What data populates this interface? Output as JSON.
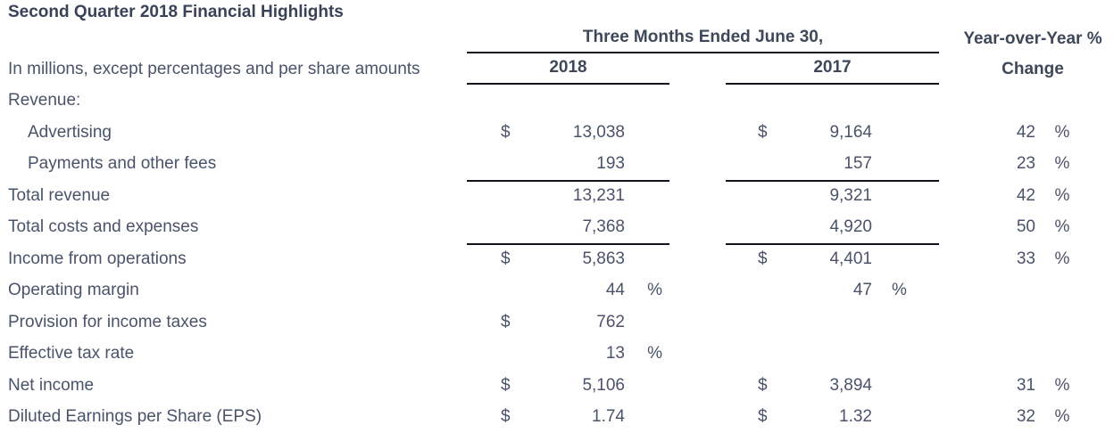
{
  "title": "Second Quarter 2018 Financial Highlights",
  "table": {
    "note": "In millions, except percentages and per share amounts",
    "period_header": "Three Months Ended June 30,",
    "year_cols": [
      "2018",
      "2017"
    ],
    "yoy_header": {
      "line1": "Year-over-Year %",
      "line2": "Change"
    },
    "rows": [
      {
        "label": "Revenue:",
        "c2018": {
          "cur": "",
          "val": "",
          "pct": ""
        },
        "c2017": {
          "cur": "",
          "val": "",
          "pct": ""
        },
        "yoy": {
          "val": "",
          "pct": ""
        }
      },
      {
        "label": "Advertising",
        "c2018": {
          "cur": "$",
          "val": "13,038",
          "pct": ""
        },
        "c2017": {
          "cur": "$",
          "val": "9,164",
          "pct": ""
        },
        "yoy": {
          "val": "42",
          "pct": "%"
        }
      },
      {
        "label": "Payments and other fees",
        "c2018": {
          "cur": "",
          "val": "193",
          "pct": ""
        },
        "c2017": {
          "cur": "",
          "val": "157",
          "pct": ""
        },
        "yoy": {
          "val": "23",
          "pct": "%"
        }
      },
      {
        "label": "Total revenue",
        "c2018": {
          "cur": "",
          "val": "13,231",
          "pct": ""
        },
        "c2017": {
          "cur": "",
          "val": "9,321",
          "pct": ""
        },
        "yoy": {
          "val": "42",
          "pct": "%"
        }
      },
      {
        "label": "Total costs and expenses",
        "c2018": {
          "cur": "",
          "val": "7,368",
          "pct": ""
        },
        "c2017": {
          "cur": "",
          "val": "4,920",
          "pct": ""
        },
        "yoy": {
          "val": "50",
          "pct": "%"
        }
      },
      {
        "label": "Income from operations",
        "c2018": {
          "cur": "$",
          "val": "5,863",
          "pct": ""
        },
        "c2017": {
          "cur": "$",
          "val": "4,401",
          "pct": ""
        },
        "yoy": {
          "val": "33",
          "pct": "%"
        }
      },
      {
        "label": "Operating margin",
        "c2018": {
          "cur": "",
          "val": "44",
          "pct": "%"
        },
        "c2017": {
          "cur": "",
          "val": "47",
          "pct": "%"
        },
        "yoy": {
          "val": "",
          "pct": ""
        }
      },
      {
        "label": "Provision for income taxes",
        "c2018": {
          "cur": "$",
          "val": "762",
          "pct": ""
        },
        "c2017": {
          "cur": "",
          "val": "",
          "pct": ""
        },
        "yoy": {
          "val": "",
          "pct": ""
        }
      },
      {
        "label": "Effective tax rate",
        "c2018": {
          "cur": "",
          "val": "13",
          "pct": "%"
        },
        "c2017": {
          "cur": "",
          "val": "",
          "pct": ""
        },
        "yoy": {
          "val": "",
          "pct": ""
        }
      },
      {
        "label": "Net income",
        "c2018": {
          "cur": "$",
          "val": "5,106",
          "pct": ""
        },
        "c2017": {
          "cur": "$",
          "val": "3,894",
          "pct": ""
        },
        "yoy": {
          "val": "31",
          "pct": "%"
        }
      },
      {
        "label": "Diluted Earnings per Share (EPS)",
        "c2018": {
          "cur": "$",
          "val": "1.74",
          "pct": ""
        },
        "c2017": {
          "cur": "$",
          "val": "1.32",
          "pct": ""
        },
        "yoy": {
          "val": "32",
          "pct": "%"
        }
      }
    ]
  },
  "colors": {
    "background": "#ffffff",
    "heading_text": "#3a4257",
    "body_text": "#49536a",
    "rule": "#12141c"
  }
}
